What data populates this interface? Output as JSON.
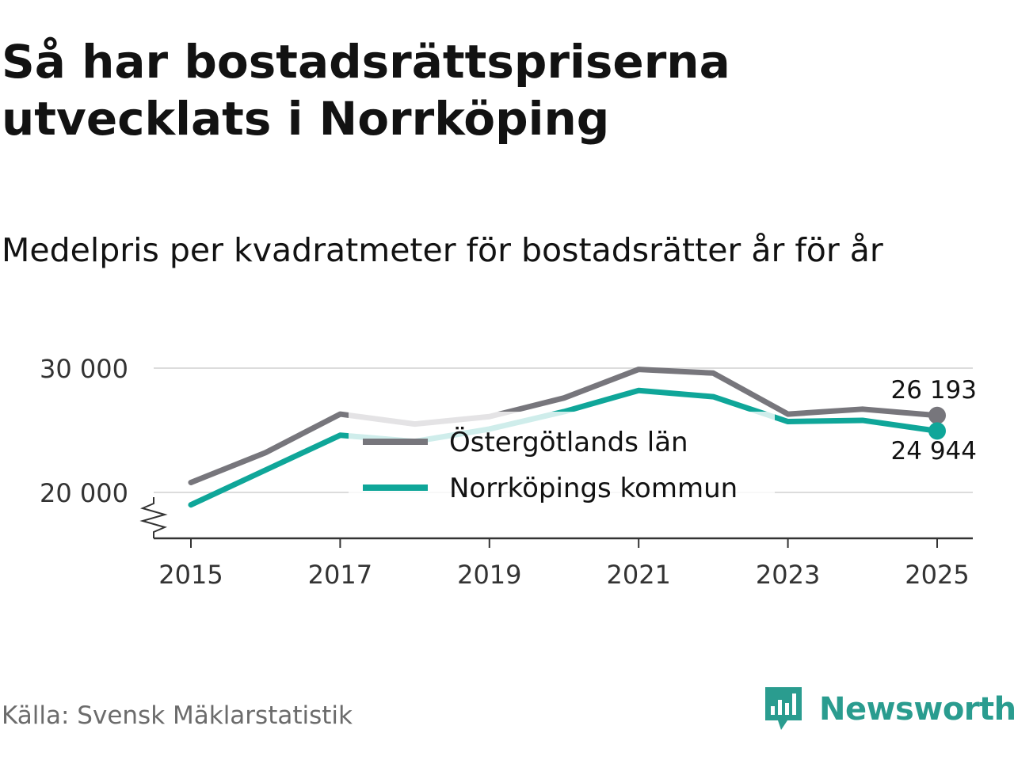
{
  "title": "Så har bostadsrättspriserna utvecklats i Norrköping",
  "subtitle": "Medelpris per kvadratmeter för bostadsrätter år för år",
  "source": "Källa: Svensk Mäklarstatistik",
  "brand": "Newsworthy",
  "colors": {
    "lan": "#77767c",
    "kommun": "#0fa699",
    "grid": "#dcdcdc",
    "axis": "#333333",
    "brand": "#2a9c8f"
  },
  "chart_data": {
    "type": "line",
    "title": "Så har bostadsrättspriserna utvecklats i Norrköping",
    "subtitle": "Medelpris per kvadratmeter för bostadsrätter år för år",
    "xlabel": "",
    "ylabel": "",
    "x": [
      2015,
      2016,
      2017,
      2018,
      2019,
      2020,
      2021,
      2022,
      2023,
      2024,
      2025
    ],
    "xticks": [
      "2015",
      "2017",
      "2019",
      "2021",
      "2023",
      "2025"
    ],
    "yticks": [
      "20 000",
      "30 000"
    ],
    "ylim": [
      16500,
      30500
    ],
    "legend_position": "center",
    "grid": true,
    "y_axis_break": true,
    "series": [
      {
        "name": "Östergötlands län",
        "values": [
          20800,
          23200,
          26300,
          25500,
          26100,
          27600,
          29900,
          29600,
          26300,
          26700,
          26193
        ],
        "end_label": "26 193"
      },
      {
        "name": "Norrköpings kommun",
        "values": [
          19000,
          21800,
          24600,
          24100,
          25100,
          26500,
          28200,
          27700,
          25700,
          25800,
          24944
        ],
        "end_label": "24 944"
      }
    ]
  }
}
